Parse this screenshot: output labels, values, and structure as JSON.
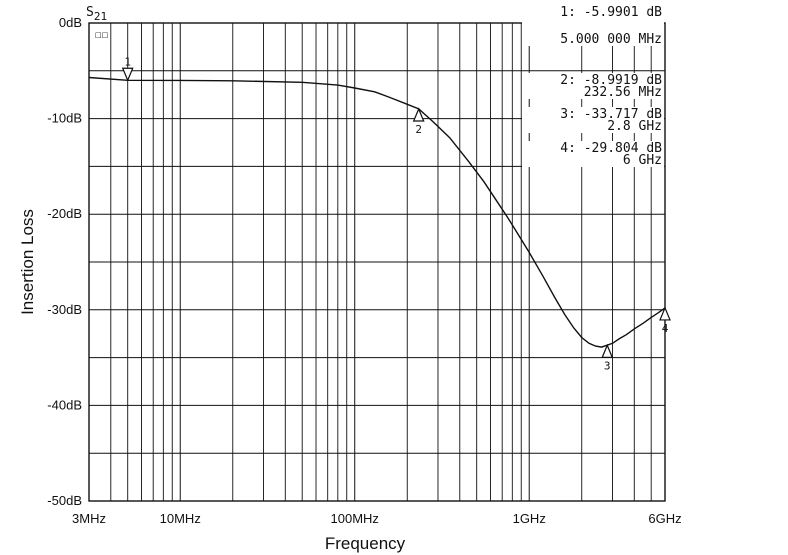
{
  "chart_data": {
    "type": "line",
    "trace_label": "S",
    "trace_sub": "21",
    "trace_scale_label": "☐☐",
    "xlabel": "Frequency",
    "ylabel": "Insertion Loss",
    "x_scale": "log",
    "xlim": [
      3000000,
      6000000000
    ],
    "ylim": [
      -50,
      0
    ],
    "x_ticks": [
      {
        "value": 3000000,
        "label": "3MHz"
      },
      {
        "value": 10000000,
        "label": "10MHz"
      },
      {
        "value": 100000000,
        "label": "100MHz"
      },
      {
        "value": 1000000000,
        "label": "1GHz"
      },
      {
        "value": 6000000000,
        "label": "6GHz"
      }
    ],
    "y_ticks": [
      {
        "value": 0,
        "label": "0dB"
      },
      {
        "value": -10,
        "label": "-10dB"
      },
      {
        "value": -20,
        "label": "-20dB"
      },
      {
        "value": -30,
        "label": "-30dB"
      },
      {
        "value": -40,
        "label": "-40dB"
      },
      {
        "value": -50,
        "label": "-50dB"
      }
    ],
    "grid": true,
    "series": [
      {
        "x": [
          3000000,
          5000000,
          10000000,
          20000000,
          50000000,
          80000000,
          100000000,
          130000000,
          160000000,
          200000000,
          232560000,
          280000000,
          350000000,
          450000000,
          550000000,
          650000000,
          750000000,
          850000000,
          1000000000,
          1200000000,
          1400000000,
          1600000000,
          1800000000,
          2000000000,
          2200000000,
          2400000000,
          2600000000,
          2800000000,
          3000000000,
          3300000000,
          3600000000,
          4000000000,
          4500000000,
          5000000000,
          5500000000,
          6000000000
        ],
        "y": [
          -5.7,
          -5.99,
          -6.0,
          -6.05,
          -6.2,
          -6.5,
          -6.8,
          -7.2,
          -7.8,
          -8.5,
          -8.99,
          -10.3,
          -12.0,
          -14.5,
          -16.6,
          -18.6,
          -20.3,
          -21.9,
          -24.0,
          -26.5,
          -28.7,
          -30.5,
          -31.9,
          -32.9,
          -33.5,
          -33.8,
          -33.9,
          -33.7,
          -33.5,
          -33.0,
          -32.6,
          -32.0,
          -31.4,
          -30.8,
          -30.3,
          -29.8
        ]
      }
    ],
    "markers": [
      {
        "id": "1",
        "x": 5000000,
        "y": -5.9901,
        "label_pos": "above"
      },
      {
        "id": "2",
        "x": 232560000,
        "y": -8.9919,
        "label_pos": "below"
      },
      {
        "id": "3",
        "x": 2800000000,
        "y": -33.717,
        "label_pos": "below"
      },
      {
        "id": "4",
        "x": 6000000000,
        "y": -29.804,
        "label_pos": "below"
      }
    ],
    "readouts": [
      {
        "line1": "1: -5.9901 dB",
        "line2": "5.000 000 MHz"
      },
      {
        "line1": "2: -8.9919 dB",
        "line2": "232.56 MHz"
      },
      {
        "line1": "3: -33.717 dB",
        "line2": "2.8 GHz"
      },
      {
        "line1": "4: -29.804 dB",
        "line2": "6 GHz"
      }
    ]
  }
}
